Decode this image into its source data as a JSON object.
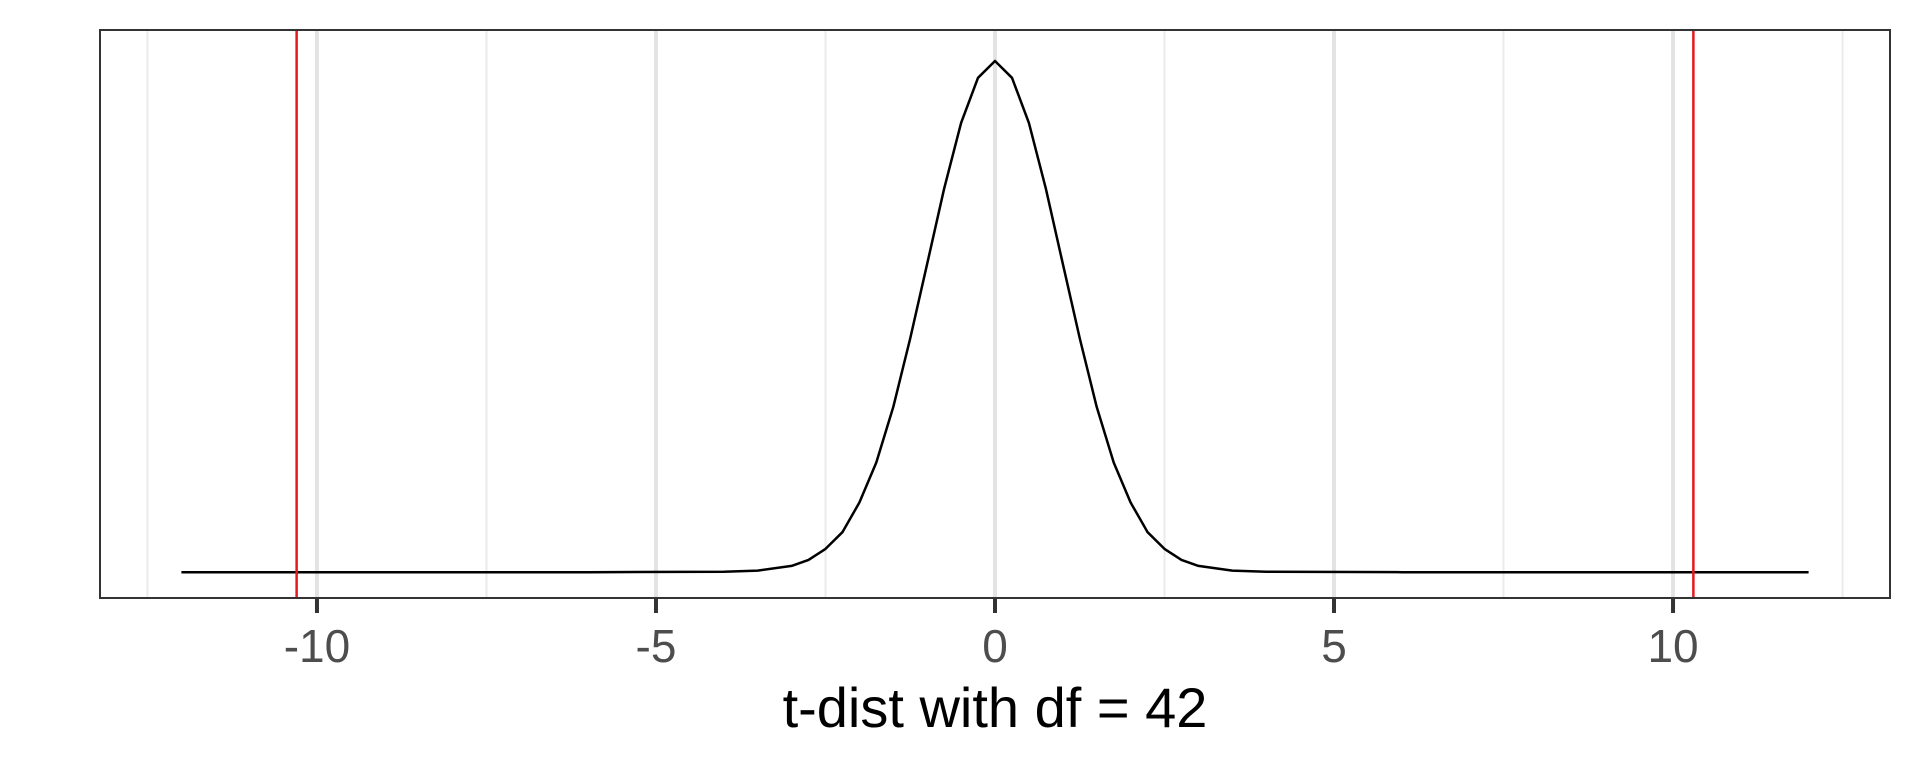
{
  "chart_data": {
    "type": "line",
    "title": "",
    "xlabel": "t-dist with df = 42",
    "ylabel": "",
    "df": 42,
    "xlim": [
      -13.2,
      13.2
    ],
    "ylim": [
      -0.02,
      0.42
    ],
    "x_range_curve": [
      -12,
      12
    ],
    "xticks": [
      -10,
      -5,
      0,
      5,
      10
    ],
    "xtick_labels": [
      "-10",
      "-5",
      "0",
      "5",
      "10"
    ],
    "minor_gridlines_x": [
      -12.5,
      -7.5,
      -2.5,
      2.5,
      7.5,
      12.5
    ],
    "grid": true,
    "show_y_axis": false,
    "series": [
      {
        "name": "",
        "color": "#000000",
        "x": [
          -12,
          -6,
          -4,
          -3.5,
          -3,
          -2.75,
          -2.5,
          -2.25,
          -2,
          -1.75,
          -1.5,
          -1.25,
          -1,
          -0.75,
          -0.5,
          -0.25,
          0,
          0.25,
          0.5,
          0.75,
          1,
          1.25,
          1.5,
          1.75,
          2,
          2.25,
          2.5,
          2.75,
          3,
          3.5,
          4,
          6,
          12
        ],
        "y": [
          0.0,
          0.0,
          0.0004,
          0.0012,
          0.0049,
          0.0095,
          0.018,
          0.031,
          0.054,
          0.085,
          0.128,
          0.181,
          0.239,
          0.297,
          0.348,
          0.383,
          0.396,
          0.383,
          0.348,
          0.297,
          0.239,
          0.181,
          0.128,
          0.085,
          0.054,
          0.031,
          0.018,
          0.0095,
          0.0049,
          0.0012,
          0.0004,
          0.0,
          0.0
        ]
      }
    ],
    "vlines": [
      {
        "x": -10.3,
        "color": "#e41a1c"
      },
      {
        "x": 10.3,
        "color": "#e41a1c"
      }
    ],
    "colors": {
      "curve": "#000000",
      "vline": "#e41a1c",
      "grid_major": "#e3e3e3",
      "grid_minor": "#ebebeb",
      "panel_border": "#333333",
      "tick": "#333333",
      "tick_label": "#4d4d4d"
    }
  }
}
